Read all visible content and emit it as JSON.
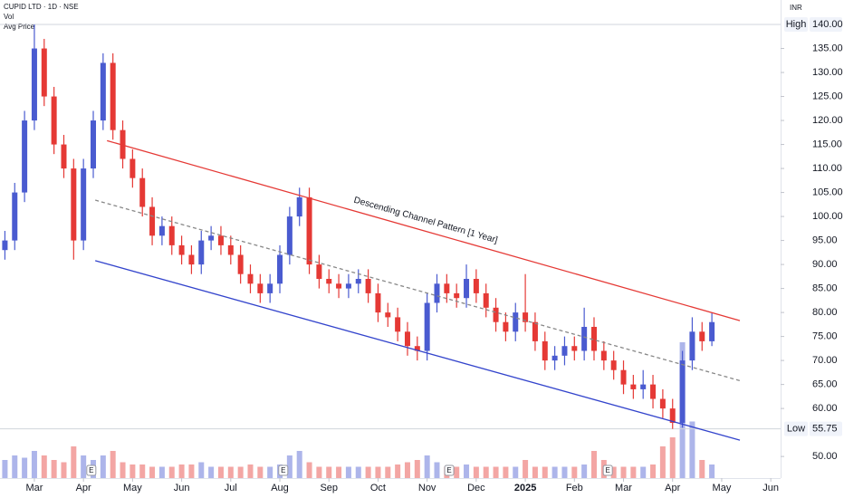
{
  "chart_data": {
    "type": "candlestick",
    "title": "CUPID LTD · 1D · NSE",
    "indicator_labels": [
      "Vol",
      "Avg Price"
    ],
    "currency": "INR",
    "up_color": "#4a5bd0",
    "down_color": "#e53935",
    "xlim": [
      -0.7,
      15.2
    ],
    "ylim": [
      45.5,
      145.1
    ],
    "xticks": [
      {
        "value": 0,
        "label": "Mar"
      },
      {
        "value": 1,
        "label": "Apr"
      },
      {
        "value": 2,
        "label": "May"
      },
      {
        "value": 3,
        "label": "Jun"
      },
      {
        "value": 4,
        "label": "Jul"
      },
      {
        "value": 5,
        "label": "Aug"
      },
      {
        "value": 6,
        "label": "Sep"
      },
      {
        "value": 7,
        "label": "Oct"
      },
      {
        "value": 8,
        "label": "Nov"
      },
      {
        "value": 9,
        "label": "Dec"
      },
      {
        "value": 10,
        "label": "2025"
      },
      {
        "value": 11,
        "label": "Feb"
      },
      {
        "value": 12,
        "label": "Mar"
      },
      {
        "value": 13,
        "label": "Apr"
      },
      {
        "value": 14,
        "label": "May"
      },
      {
        "value": 15,
        "label": "Jun"
      }
    ],
    "yticks": [
      {
        "value": 50,
        "label": "50.00"
      },
      {
        "value": 60,
        "label": "60.00"
      },
      {
        "value": 65,
        "label": "65.00"
      },
      {
        "value": 70,
        "label": "70.00"
      },
      {
        "value": 75,
        "label": "75.00"
      },
      {
        "value": 80,
        "label": "80.00"
      },
      {
        "value": 85,
        "label": "85.00"
      },
      {
        "value": 90,
        "label": "90.00"
      },
      {
        "value": 95,
        "label": "95.00"
      },
      {
        "value": 100,
        "label": "100.00"
      },
      {
        "value": 105,
        "label": "105.00"
      },
      {
        "value": 110,
        "label": "110.00"
      },
      {
        "value": 115,
        "label": "115.00"
      },
      {
        "value": 120,
        "label": "120.00"
      },
      {
        "value": 125,
        "label": "125.00"
      },
      {
        "value": 130,
        "label": "130.00"
      },
      {
        "value": 135,
        "label": "135.00"
      }
    ],
    "x": [
      -0.6,
      -0.4,
      -0.2,
      0,
      0.2,
      0.4,
      0.6,
      0.8,
      1,
      1.2,
      1.4,
      1.6,
      1.8,
      2,
      2.2,
      2.4,
      2.6,
      2.8,
      3,
      3.2,
      3.4,
      3.6,
      3.8,
      4,
      4.2,
      4.4,
      4.6,
      4.8,
      5,
      5.2,
      5.4,
      5.6,
      5.8,
      6,
      6.2,
      6.4,
      6.6,
      6.8,
      7,
      7.2,
      7.4,
      7.6,
      7.8,
      8,
      8.2,
      8.4,
      8.6,
      8.8,
      9,
      9.2,
      9.4,
      9.6,
      9.8,
      10,
      10.2,
      10.4,
      10.6,
      10.8,
      11,
      11.2,
      11.4,
      11.6,
      11.8,
      12,
      12.2,
      12.4,
      12.6,
      12.8,
      13,
      13.2,
      13.4,
      13.6,
      13.8
    ],
    "open": [
      93,
      95,
      105,
      120,
      135,
      125,
      115,
      110,
      95,
      110,
      120,
      132,
      118,
      112,
      108,
      102,
      96,
      98,
      94,
      92,
      90,
      95,
      96,
      94,
      92,
      88,
      86,
      84,
      86,
      92,
      100,
      104,
      90,
      87,
      86,
      85,
      86,
      87,
      84,
      80,
      79,
      76,
      73,
      72,
      82,
      86,
      84,
      83,
      87,
      84,
      81,
      78,
      76,
      80,
      78,
      74,
      70,
      71,
      73,
      72,
      77,
      72,
      70,
      68,
      65,
      64,
      65,
      62,
      60,
      57,
      70,
      76,
      74
    ],
    "high": [
      97,
      107,
      122,
      140,
      137,
      127,
      117,
      112,
      112,
      122,
      134,
      134,
      120,
      114,
      110,
      104,
      100,
      100,
      96,
      94,
      97,
      98,
      98,
      96,
      94,
      90,
      88,
      88,
      94,
      102,
      106,
      106,
      92,
      89,
      88,
      88,
      89,
      89,
      86,
      82,
      81,
      78,
      75,
      84,
      88,
      88,
      86,
      90,
      89,
      86,
      83,
      80,
      82,
      88,
      80,
      76,
      73,
      75,
      75,
      81,
      79,
      74,
      72,
      70,
      67,
      68,
      67,
      64,
      62,
      72,
      79,
      78,
      80
    ],
    "low": [
      91,
      93,
      103,
      118,
      123,
      113,
      108,
      91,
      93,
      108,
      118,
      116,
      110,
      106,
      100,
      94,
      94,
      92,
      90,
      88,
      88,
      93,
      92,
      90,
      86,
      84,
      82,
      82,
      84,
      90,
      98,
      88,
      85,
      84,
      83,
      83,
      84,
      82,
      78,
      77,
      74,
      71,
      70,
      70,
      80,
      82,
      81,
      81,
      82,
      79,
      76,
      74,
      74,
      76,
      72,
      68,
      68,
      69,
      70,
      70,
      70,
      68,
      66,
      63,
      62,
      62,
      60,
      58,
      55.75,
      56,
      68,
      72,
      73
    ],
    "close": [
      95,
      105,
      120,
      135,
      125,
      115,
      110,
      95,
      110,
      120,
      132,
      118,
      112,
      108,
      102,
      96,
      98,
      94,
      92,
      90,
      95,
      96,
      94,
      92,
      88,
      86,
      84,
      86,
      92,
      100,
      104,
      90,
      87,
      86,
      85,
      86,
      87,
      84,
      80,
      79,
      76,
      73,
      72,
      82,
      86,
      84,
      83,
      87,
      84,
      81,
      78,
      76,
      80,
      78,
      74,
      70,
      71,
      73,
      72,
      77,
      72,
      70,
      68,
      65,
      64,
      65,
      62,
      60,
      57,
      70,
      76,
      74,
      78
    ],
    "volume": [
      0.8,
      1,
      0.9,
      1.2,
      1,
      0.8,
      0.7,
      1.4,
      1,
      0.8,
      1,
      1.2,
      0.7,
      0.6,
      0.6,
      0.5,
      0.5,
      0.5,
      0.6,
      0.6,
      0.7,
      0.5,
      0.5,
      0.5,
      0.5,
      0.6,
      0.5,
      0.5,
      0.6,
      1,
      1.2,
      0.7,
      0.5,
      0.5,
      0.5,
      0.5,
      0.5,
      0.5,
      0.5,
      0.5,
      0.6,
      0.7,
      0.8,
      1,
      0.7,
      0.5,
      0.5,
      0.6,
      0.5,
      0.5,
      0.5,
      0.5,
      0.5,
      0.8,
      0.5,
      0.5,
      0.5,
      0.5,
      0.5,
      0.6,
      1.2,
      0.8,
      0.5,
      0.5,
      0.5,
      0.5,
      0.6,
      1.4,
      1.8,
      6,
      2.5,
      0.8,
      0.6
    ],
    "price_markers": [
      {
        "label": "High",
        "value": 140,
        "value_label": "140.00"
      },
      {
        "label": "Low",
        "value": 55.75,
        "value_label": "55.75"
      }
    ],
    "trendlines": [
      {
        "color": "#e53935",
        "dashed": false,
        "x": [
          1.48,
          14.37
        ],
        "y": [
          115.8,
          78.3
        ]
      },
      {
        "color": "#888888",
        "dashed": true,
        "x": [
          1.24,
          14.37
        ],
        "y": [
          103.4,
          65.8
        ]
      },
      {
        "color": "#3344cc",
        "dashed": false,
        "x": [
          1.24,
          14.37
        ],
        "y": [
          90.8,
          53.4
        ]
      }
    ],
    "annotation": {
      "text": "Descending Channel Pattern [1 Year]",
      "x": 7.97,
      "y": 99.2
    },
    "earnings": [
      {
        "x": 1.16,
        "label": "E"
      },
      {
        "x": 5.07,
        "label": "E"
      },
      {
        "x": 8.45,
        "label": "E"
      },
      {
        "x": 11.68,
        "label": "E"
      }
    ]
  }
}
